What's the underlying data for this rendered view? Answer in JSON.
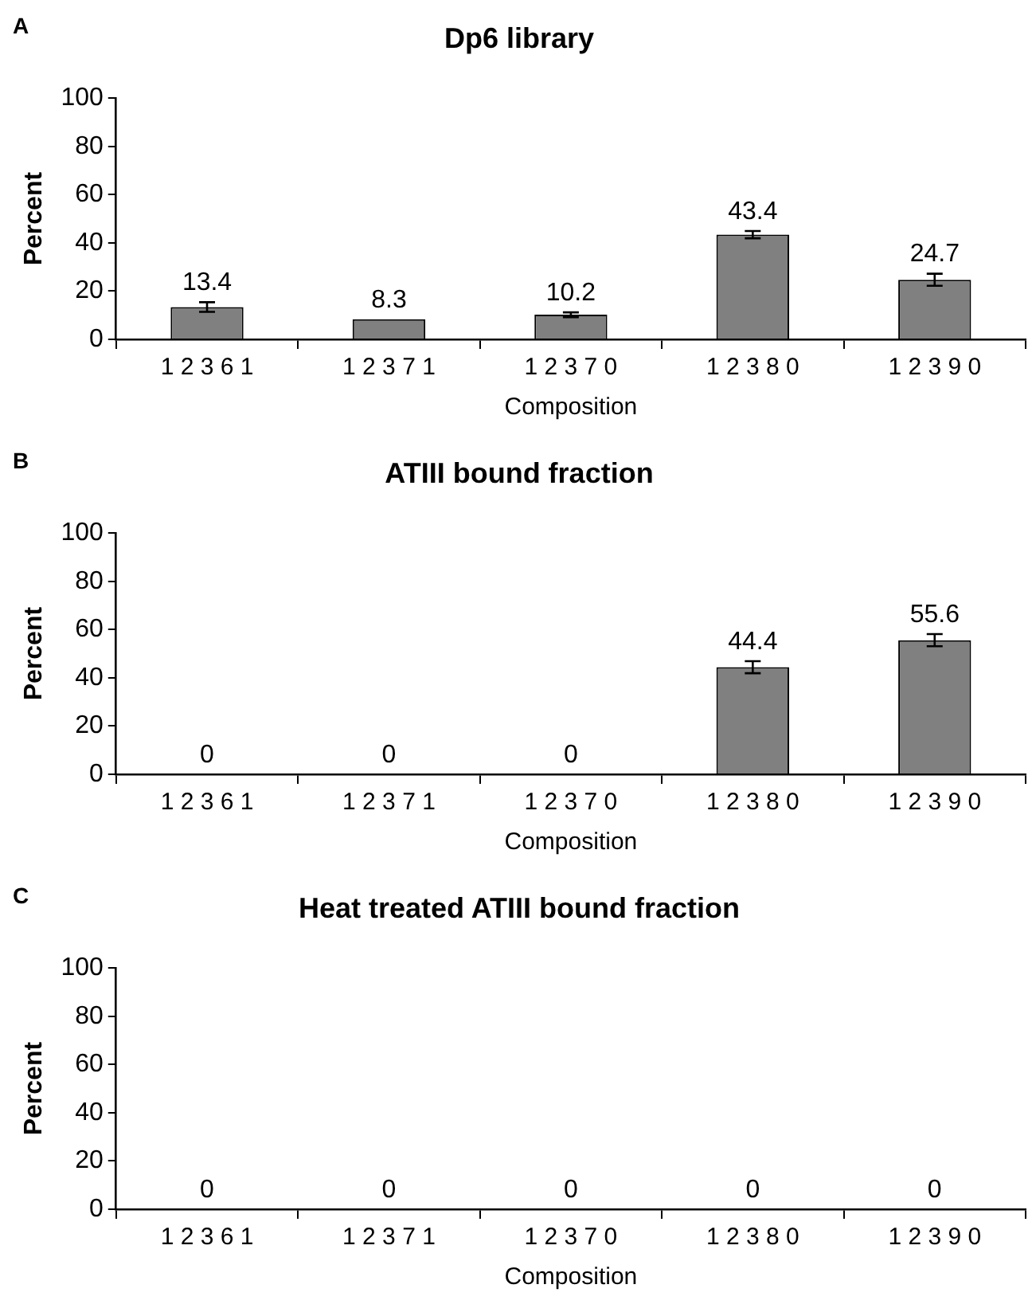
{
  "chart_data": [
    {
      "type": "bar",
      "title": "Dp6 library",
      "xlabel": "Composition",
      "ylabel": "Percent",
      "annotations": [
        "A"
      ],
      "categories": [
        "1 2 3 6 1",
        "1 2 3 7 1",
        "1 2 3 7 0",
        "1 2 3 8 0",
        "1 2 3 9 0"
      ],
      "values": [
        13.4,
        8.3,
        10.2,
        43.4,
        24.7
      ],
      "errors": [
        2,
        null,
        1,
        1.5,
        2.5
      ],
      "color": "#808080",
      "ylim": [
        0,
        100
      ],
      "yticks": [
        0,
        20,
        40,
        60,
        80,
        100
      ],
      "grid": false,
      "legend": false,
      "data_labels": true
    },
    {
      "type": "bar",
      "title": "ATIII bound fraction",
      "xlabel": "Composition",
      "ylabel": "Percent",
      "annotations": [
        "B"
      ],
      "categories": [
        "1 2 3 6 1",
        "1 2 3 7 1",
        "1 2 3 7 0",
        "1 2 3 8 0",
        "1 2 3 9 0"
      ],
      "values": [
        0,
        0,
        0,
        44.4,
        55.6
      ],
      "errors": [
        null,
        null,
        null,
        2.5,
        2.5
      ],
      "color": "#808080",
      "ylim": [
        0,
        100
      ],
      "yticks": [
        0,
        20,
        40,
        60,
        80,
        100
      ],
      "grid": false,
      "legend": false,
      "data_labels": true
    },
    {
      "type": "bar",
      "title": "Heat treated ATIII bound fraction",
      "xlabel": "Composition",
      "ylabel": "Percent",
      "annotations": [
        "C"
      ],
      "categories": [
        "1 2 3 6 1",
        "1 2 3 7 1",
        "1 2 3 7 0",
        "1 2 3 8 0",
        "1 2 3 9 0"
      ],
      "values": [
        0,
        0,
        0,
        0,
        0
      ],
      "color": "#808080",
      "ylim": [
        0,
        100
      ],
      "yticks": [
        0,
        20,
        40,
        60,
        80,
        100
      ],
      "grid": false,
      "legend": false,
      "data_labels": true
    }
  ]
}
